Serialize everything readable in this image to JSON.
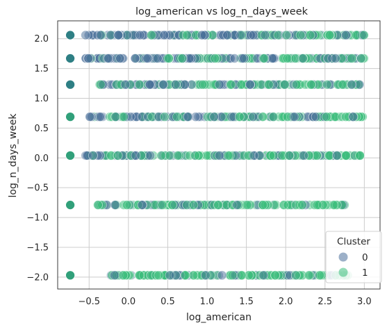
{
  "chart_data": {
    "type": "scatter",
    "title": "log_american vs log_n_days_week",
    "xlabel": "log_american",
    "ylabel": "log_n_days_week",
    "xlim": [
      -0.9,
      3.2
    ],
    "ylim": [
      -2.2,
      2.3
    ],
    "xticks": [
      -0.5,
      0.0,
      0.5,
      1.0,
      1.5,
      2.0,
      2.5,
      3.0
    ],
    "xtick_labels": [
      "−0.5",
      "0.0",
      "0.5",
      "1.0",
      "1.5",
      "2.0",
      "2.5",
      "3.0"
    ],
    "yticks": [
      -2.0,
      -1.5,
      -1.0,
      -0.5,
      0.0,
      0.5,
      1.0,
      1.5,
      2.0
    ],
    "ytick_labels": [
      "−2.0",
      "−1.5",
      "−1.0",
      "−0.5",
      "0.0",
      "0.5",
      "1.0",
      "1.5",
      "2.0"
    ],
    "grid": true,
    "legend": {
      "title": "Cluster",
      "position": "lower-right",
      "entries": [
        "0",
        "1"
      ]
    },
    "series": [
      {
        "name": "0",
        "color": "#4a6f9a"
      },
      {
        "name": "1",
        "color": "#3bbd7c"
      }
    ],
    "rows": [
      {
        "y": 2.06,
        "x_min": -0.55,
        "x_max": 3.0,
        "x_isolated": -0.74,
        "cluster0_share": 0.65,
        "isolated_cluster": 0
      },
      {
        "y": 1.67,
        "x_min": -0.55,
        "x_max": 3.0,
        "x_isolated": -0.74,
        "cluster0_share": 0.6,
        "isolated_cluster": 0
      },
      {
        "y": 1.23,
        "x_min": -0.4,
        "x_max": 2.95,
        "x_isolated": -0.74,
        "cluster0_share": 0.45,
        "isolated_cluster": 0
      },
      {
        "y": 0.69,
        "x_min": -0.5,
        "x_max": 3.0,
        "x_isolated": -0.74,
        "cluster0_share": 0.4,
        "isolated_cluster": 1
      },
      {
        "y": 0.04,
        "x_min": -0.6,
        "x_max": 2.95,
        "x_isolated": -0.74,
        "cluster0_share": 0.4,
        "isolated_cluster": 1
      },
      {
        "y": -0.79,
        "x_min": -0.4,
        "x_max": 2.75,
        "x_isolated": -0.74,
        "cluster0_share": 0.25,
        "isolated_cluster": 1
      },
      {
        "y": -1.97,
        "x_min": -0.25,
        "x_max": 2.85,
        "x_isolated": -0.74,
        "cluster0_share": 0.25,
        "isolated_cluster": 1
      }
    ]
  }
}
